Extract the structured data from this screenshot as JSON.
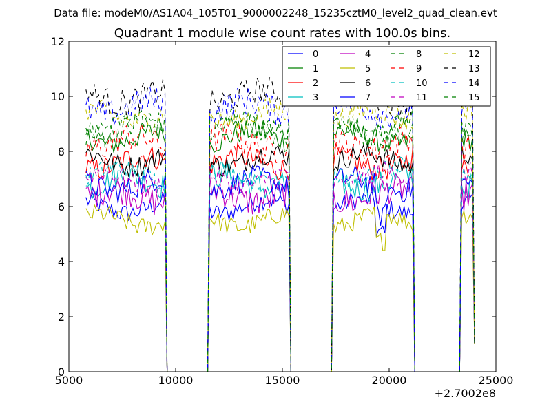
{
  "figure": {
    "suptitle": "Data file: modeM0/AS1A04_105T01_9000002248_15235cztM0_level2_quad_clean.evt"
  },
  "chart_data": {
    "type": "line",
    "title": "Quadrant 1 module wise count rates with 100.0s bins.",
    "xlabel": "",
    "ylabel": "",
    "x_offset_label": "+2.7002e8",
    "xlim": [
      5000,
      25000
    ],
    "ylim": [
      0,
      12
    ],
    "xticks": [
      "5000",
      "10000",
      "15000",
      "20000",
      "25000"
    ],
    "yticks": [
      "0",
      "2",
      "4",
      "6",
      "8",
      "10",
      "12"
    ],
    "grid": false,
    "legend_position": "top-right",
    "legend_columns": 4,
    "time_windows": [
      {
        "start": 5800,
        "end": 9500
      },
      {
        "start": 11600,
        "end": 15300
      },
      {
        "start": 17400,
        "end": 21100
      },
      {
        "start": 23400,
        "end": 23900
      }
    ],
    "gap_level": 0,
    "end_value": 1,
    "x_step": 100,
    "series": [
      {
        "name": "0",
        "color": "#0000ff",
        "dash": "solid",
        "mean": 6.0
      },
      {
        "name": "1",
        "color": "#008000",
        "dash": "solid",
        "mean": 8.5
      },
      {
        "name": "2",
        "color": "#ff0000",
        "dash": "solid",
        "mean": 7.6
      },
      {
        "name": "3",
        "color": "#00bfbf",
        "dash": "solid",
        "mean": 6.9
      },
      {
        "name": "4",
        "color": "#bf00bf",
        "dash": "solid",
        "mean": 6.4
      },
      {
        "name": "5",
        "color": "#bfbf00",
        "dash": "solid",
        "mean": 5.5
      },
      {
        "name": "6",
        "color": "#000000",
        "dash": "solid",
        "mean": 7.7
      },
      {
        "name": "7",
        "color": "#0000ff",
        "dash": "solid",
        "mean": 6.8
      },
      {
        "name": "8",
        "color": "#008000",
        "dash": "dashed",
        "mean": 8.8
      },
      {
        "name": "9",
        "color": "#ff0000",
        "dash": "dashed",
        "mean": 8.3
      },
      {
        "name": "10",
        "color": "#00bfbf",
        "dash": "dashed",
        "mean": 7.2
      },
      {
        "name": "11",
        "color": "#bf00bf",
        "dash": "dashed",
        "mean": 7.0
      },
      {
        "name": "12",
        "color": "#bfbf00",
        "dash": "dashed",
        "mean": 9.3
      },
      {
        "name": "13",
        "color": "#000000",
        "dash": "dashed",
        "mean": 10.0
      },
      {
        "name": "14",
        "color": "#0000ff",
        "dash": "dashed",
        "mean": 9.6
      },
      {
        "name": "15",
        "color": "#008000",
        "dash": "dashed",
        "mean": 9.0
      }
    ]
  }
}
